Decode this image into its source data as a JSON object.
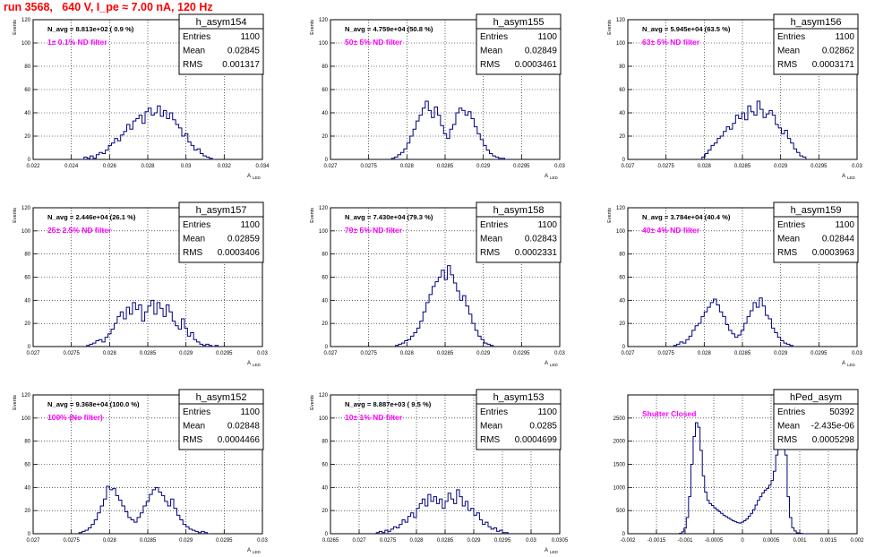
{
  "page_title": "run 3568,   640 V, I_pe ≈ 7.00 nA, 120 Hz",
  "colors": {
    "title": "#ff0000",
    "histogram": "#000080",
    "annotation": "#ff00ff",
    "grid": "#000000",
    "background": "#ffffff"
  },
  "chart_data": [
    {
      "type": "histogram",
      "name": "h_asym154",
      "stats": {
        "Entries": "1100",
        "Mean": "0.02845",
        "RMS": "0.001317"
      },
      "navg": "N_avg = 8.813e+02 ( 0.9 %)",
      "note": "1± 0.1% ND filter",
      "ylabel": "Events",
      "xlabel": "A",
      "xlabel_sub": "LED",
      "xlim": [
        0.022,
        0.034
      ],
      "ylim": [
        0,
        120
      ],
      "xticks": [
        "0.022",
        "0.024",
        "0.026",
        "0.028",
        "0.03",
        "0.032",
        "0.034"
      ],
      "yticks": [
        "0",
        "20",
        "40",
        "60",
        "80",
        "100",
        "120"
      ],
      "grid": true,
      "bin_edges": [
        0.0245,
        0.02466,
        0.02482,
        0.02498,
        0.02514,
        0.0253,
        0.02546,
        0.02562,
        0.02578,
        0.02594,
        0.0261,
        0.02626,
        0.02642,
        0.02658,
        0.02674,
        0.0269,
        0.02706,
        0.02722,
        0.02738,
        0.02754,
        0.0277,
        0.02786,
        0.02802,
        0.02818,
        0.02834,
        0.0285,
        0.02866,
        0.02882,
        0.02898,
        0.02914,
        0.0293,
        0.02946,
        0.02962,
        0.02978,
        0.02994,
        0.0301,
        0.03026,
        0.03042,
        0.03058,
        0.03074,
        0.0309,
        0.03106,
        0.03122,
        0.03138,
        0.03154
      ],
      "counts": [
        0,
        2,
        1,
        3,
        1,
        4,
        6,
        5,
        8,
        12,
        14,
        18,
        16,
        21,
        24,
        30,
        26,
        33,
        35,
        38,
        31,
        41,
        44,
        38,
        40,
        46,
        37,
        42,
        35,
        40,
        34,
        30,
        27,
        20,
        22,
        15,
        12,
        8,
        9,
        5,
        3,
        2,
        1,
        0
      ]
    },
    {
      "type": "histogram",
      "name": "h_asym155",
      "stats": {
        "Entries": "1100",
        "Mean": "0.02849",
        "RMS": "0.0003461"
      },
      "navg": "N_avg = 4.759e+04 (50.8 %)",
      "note": "50± 5% ND filter",
      "ylabel": "Events",
      "xlabel": "A",
      "xlabel_sub": "LED",
      "xlim": [
        0.027,
        0.03
      ],
      "ylim": [
        0,
        120
      ],
      "xticks": [
        "0.027",
        "0.0275",
        "0.028",
        "0.0285",
        "0.029",
        "0.0295",
        "0.03"
      ],
      "yticks": [
        "0",
        "20",
        "40",
        "60",
        "80",
        "100",
        "120"
      ],
      "grid": true,
      "bin_edges": [
        0.0278,
        0.02784,
        0.02788,
        0.02792,
        0.02796,
        0.028,
        0.02804,
        0.02808,
        0.02812,
        0.02816,
        0.0282,
        0.02824,
        0.02828,
        0.02832,
        0.02836,
        0.0284,
        0.02844,
        0.02848,
        0.02852,
        0.02856,
        0.0286,
        0.02864,
        0.02868,
        0.02872,
        0.02876,
        0.0288,
        0.02884,
        0.02888,
        0.02892,
        0.02896,
        0.029,
        0.02904,
        0.02908,
        0.02912,
        0.02916,
        0.0292,
        0.02924,
        0.02928,
        0.02932
      ],
      "counts": [
        1,
        2,
        4,
        6,
        9,
        14,
        20,
        26,
        33,
        38,
        44,
        50,
        42,
        36,
        45,
        38,
        29,
        22,
        18,
        26,
        30,
        40,
        44,
        42,
        38,
        41,
        35,
        28,
        22,
        17,
        12,
        8,
        5,
        3,
        2,
        1,
        1,
        0
      ]
    },
    {
      "type": "histogram",
      "name": "h_asym156",
      "stats": {
        "Entries": "1100",
        "Mean": "0.02862",
        "RMS": "0.0003171"
      },
      "navg": "N_avg = 5.945e+04 (63.5 %)",
      "note": "63± 5% ND filter",
      "ylabel": "Events",
      "xlabel": "A",
      "xlabel_sub": "LED",
      "xlim": [
        0.027,
        0.03
      ],
      "ylim": [
        0,
        120
      ],
      "xticks": [
        "0.027",
        "0.0275",
        "0.028",
        "0.0285",
        "0.029",
        "0.0295",
        "0.03"
      ],
      "yticks": [
        "0",
        "20",
        "40",
        "60",
        "80",
        "100",
        "120"
      ],
      "grid": true,
      "bin_edges": [
        0.02797,
        0.02801,
        0.02805,
        0.02809,
        0.02813,
        0.02817,
        0.02821,
        0.02825,
        0.02829,
        0.02833,
        0.02837,
        0.02841,
        0.02845,
        0.02849,
        0.02853,
        0.02857,
        0.02861,
        0.02865,
        0.02869,
        0.02873,
        0.02877,
        0.02881,
        0.02885,
        0.02889,
        0.02893,
        0.02897,
        0.02901,
        0.02905,
        0.02909,
        0.02913,
        0.02917,
        0.02921,
        0.02925,
        0.02929,
        0.02933
      ],
      "counts": [
        2,
        5,
        8,
        12,
        14,
        18,
        20,
        24,
        28,
        26,
        31,
        38,
        35,
        40,
        34,
        46,
        41,
        38,
        50,
        43,
        36,
        39,
        42,
        38,
        30,
        27,
        22,
        25,
        18,
        14,
        9,
        6,
        3,
        2
      ]
    },
    {
      "type": "histogram",
      "name": "h_asym157",
      "stats": {
        "Entries": "1100",
        "Mean": "0.02859",
        "RMS": "0.0003406"
      },
      "navg": "N_avg = 2.446e+04 (26.1 %)",
      "note": "25± 2.5% ND filter",
      "ylabel": "Events",
      "xlabel": "A",
      "xlabel_sub": "LED",
      "xlim": [
        0.027,
        0.03
      ],
      "ylim": [
        0,
        120
      ],
      "xticks": [
        "0.027",
        "0.0275",
        "0.028",
        "0.0285",
        "0.029",
        "0.0295",
        "0.03"
      ],
      "yticks": [
        "0",
        "20",
        "40",
        "60",
        "80",
        "100",
        "120"
      ],
      "grid": true,
      "bin_edges": [
        0.0277,
        0.02774,
        0.02778,
        0.02782,
        0.02786,
        0.0279,
        0.02794,
        0.02798,
        0.02802,
        0.02806,
        0.0281,
        0.02814,
        0.02818,
        0.02822,
        0.02826,
        0.0283,
        0.02834,
        0.02838,
        0.02842,
        0.02846,
        0.0285,
        0.02854,
        0.02858,
        0.02862,
        0.02866,
        0.0287,
        0.02874,
        0.02878,
        0.02882,
        0.02886,
        0.0289,
        0.02894,
        0.02898,
        0.02902,
        0.02906,
        0.0291,
        0.02914,
        0.02918,
        0.02922,
        0.02926,
        0.0293,
        0.02934,
        0.02938,
        0.02942
      ],
      "counts": [
        1,
        2,
        3,
        5,
        6,
        4,
        8,
        11,
        15,
        20,
        26,
        30,
        24,
        34,
        28,
        38,
        32,
        36,
        22,
        30,
        35,
        40,
        28,
        38,
        33,
        26,
        36,
        30,
        22,
        18,
        15,
        24,
        16,
        9,
        12,
        6,
        4,
        2,
        1,
        2,
        1,
        0,
        1
      ]
    },
    {
      "type": "histogram",
      "name": "h_asym158",
      "stats": {
        "Entries": "1100",
        "Mean": "0.02843",
        "RMS": "0.0002331"
      },
      "navg": "N_avg = 7.430e+04 (79.3 %)",
      "note": "79± 5% ND filter",
      "ylabel": "Events",
      "xlabel": "A",
      "xlabel_sub": "LED",
      "xlim": [
        0.027,
        0.03
      ],
      "ylim": [
        0,
        120
      ],
      "xticks": [
        "0.027",
        "0.0275",
        "0.028",
        "0.0285",
        "0.029",
        "0.0295",
        "0.03"
      ],
      "yticks": [
        "0",
        "20",
        "40",
        "60",
        "80",
        "100",
        "120"
      ],
      "grid": true,
      "bin_edges": [
        0.02785,
        0.02789,
        0.02793,
        0.02797,
        0.02801,
        0.02805,
        0.02809,
        0.02813,
        0.02817,
        0.02821,
        0.02825,
        0.02829,
        0.02833,
        0.02837,
        0.02841,
        0.02845,
        0.02849,
        0.02853,
        0.02857,
        0.02861,
        0.02865,
        0.02869,
        0.02873,
        0.02877,
        0.02881,
        0.02885,
        0.02889,
        0.02893,
        0.02897,
        0.02901,
        0.02905,
        0.02909,
        0.02913
      ],
      "counts": [
        1,
        2,
        3,
        5,
        6,
        9,
        12,
        16,
        22,
        30,
        38,
        45,
        52,
        56,
        60,
        66,
        58,
        70,
        62,
        55,
        48,
        40,
        44,
        35,
        28,
        20,
        14,
        9,
        6,
        3,
        2,
        1
      ]
    },
    {
      "type": "histogram",
      "name": "h_asym159",
      "stats": {
        "Entries": "1100",
        "Mean": "0.02844",
        "RMS": "0.0003963"
      },
      "navg": "N_avg = 3.784e+04 (40.4 %)",
      "note": "40± 4% ND filter",
      "ylabel": "Events",
      "xlabel": "A",
      "xlabel_sub": "LED",
      "xlim": [
        0.027,
        0.03
      ],
      "ylim": [
        0,
        120
      ],
      "xticks": [
        "0.027",
        "0.0275",
        "0.028",
        "0.0285",
        "0.029",
        "0.0295",
        "0.03"
      ],
      "yticks": [
        "0",
        "20",
        "40",
        "60",
        "80",
        "100",
        "120"
      ],
      "grid": true,
      "bin_edges": [
        0.0276,
        0.02764,
        0.02768,
        0.02772,
        0.02776,
        0.0278,
        0.02784,
        0.02788,
        0.02792,
        0.02796,
        0.028,
        0.02804,
        0.02808,
        0.02812,
        0.02816,
        0.0282,
        0.02824,
        0.02828,
        0.02832,
        0.02836,
        0.0284,
        0.02844,
        0.02848,
        0.02852,
        0.02856,
        0.0286,
        0.02864,
        0.02868,
        0.02872,
        0.02876,
        0.0288,
        0.02884,
        0.02888,
        0.02892,
        0.02896,
        0.029,
        0.02904,
        0.02908,
        0.02912,
        0.02916,
        0.0292
      ],
      "counts": [
        1,
        2,
        4,
        3,
        6,
        9,
        14,
        18,
        20,
        26,
        30,
        34,
        38,
        41,
        36,
        30,
        26,
        19,
        14,
        11,
        8,
        10,
        14,
        20,
        26,
        31,
        38,
        34,
        42,
        35,
        27,
        24,
        16,
        12,
        8,
        5,
        3,
        2,
        1,
        0
      ]
    },
    {
      "type": "histogram",
      "name": "h_asym152",
      "stats": {
        "Entries": "1100",
        "Mean": "0.02848",
        "RMS": "0.0004466"
      },
      "navg": "N_avg = 9.368e+04 (100.0 %)",
      "note": "100% (No filter)",
      "ylabel": "Events",
      "xlabel": "A",
      "xlabel_sub": "LED",
      "xlim": [
        0.027,
        0.03
      ],
      "ylim": [
        0,
        120
      ],
      "xticks": [
        "0.027",
        "0.0275",
        "0.028",
        "0.0285",
        "0.029",
        "0.0295",
        "0.03"
      ],
      "yticks": [
        "0",
        "20",
        "40",
        "60",
        "80",
        "100",
        "120"
      ],
      "grid": true,
      "bin_edges": [
        0.0276,
        0.02764,
        0.02768,
        0.02772,
        0.02776,
        0.0278,
        0.02784,
        0.02788,
        0.02792,
        0.02796,
        0.028,
        0.02804,
        0.02808,
        0.02812,
        0.02816,
        0.0282,
        0.02824,
        0.02828,
        0.02832,
        0.02836,
        0.0284,
        0.02844,
        0.02848,
        0.02852,
        0.02856,
        0.0286,
        0.02864,
        0.02868,
        0.02872,
        0.02876,
        0.0288,
        0.02884,
        0.02888,
        0.02892,
        0.02896,
        0.029,
        0.02904,
        0.02908,
        0.02912,
        0.02916,
        0.0292,
        0.02924,
        0.02928,
        0.02932
      ],
      "counts": [
        1,
        2,
        3,
        5,
        8,
        12,
        18,
        24,
        30,
        41,
        38,
        39,
        33,
        29,
        24,
        19,
        14,
        12,
        10,
        14,
        18,
        24,
        28,
        34,
        38,
        40,
        36,
        33,
        28,
        24,
        30,
        22,
        16,
        12,
        8,
        6,
        4,
        3,
        2,
        1,
        2,
        1,
        0
      ]
    },
    {
      "type": "histogram",
      "name": "h_asym153",
      "stats": {
        "Entries": "1100",
        "Mean": "0.0285",
        "RMS": "0.0004699"
      },
      "navg": "N_avg = 8.887e+03 ( 9.5 %)",
      "note": "10± 1% ND filter",
      "ylabel": "Events",
      "xlabel": "A",
      "xlabel_sub": "LED",
      "xlim": [
        0.0265,
        0.0305
      ],
      "ylim": [
        0,
        120
      ],
      "xticks": [
        "0.0265",
        "0.027",
        "0.0275",
        "0.028",
        "0.0285",
        "0.029",
        "0.0295",
        "0.03",
        "0.0305"
      ],
      "yticks": [
        "0",
        "20",
        "40",
        "60",
        "80",
        "100",
        "120"
      ],
      "grid": true,
      "bin_edges": [
        0.0273,
        0.02735,
        0.0274,
        0.02745,
        0.0275,
        0.02755,
        0.0276,
        0.02765,
        0.0277,
        0.02775,
        0.0278,
        0.02785,
        0.0279,
        0.02795,
        0.028,
        0.02805,
        0.0281,
        0.02815,
        0.0282,
        0.02825,
        0.0283,
        0.02835,
        0.0284,
        0.02845,
        0.0285,
        0.02855,
        0.0286,
        0.02865,
        0.0287,
        0.02875,
        0.0288,
        0.02885,
        0.0289,
        0.02895,
        0.029,
        0.02905,
        0.0291,
        0.02915,
        0.0292,
        0.02925,
        0.0293,
        0.02935,
        0.0294,
        0.02945,
        0.0295,
        0.02955,
        0.0296
      ],
      "counts": [
        1,
        2,
        1,
        3,
        2,
        4,
        6,
        5,
        8,
        12,
        10,
        15,
        18,
        14,
        22,
        26,
        30,
        24,
        34,
        28,
        32,
        26,
        30,
        22,
        28,
        35,
        30,
        26,
        38,
        32,
        24,
        28,
        20,
        22,
        16,
        18,
        12,
        8,
        10,
        6,
        4,
        5,
        2,
        3,
        1,
        1
      ]
    },
    {
      "type": "histogram",
      "name": "hPed_asym",
      "stats": {
        "Entries": "50392",
        "Mean": "-2.435e-06",
        "RMS": "0.0005298"
      },
      "navg": "",
      "note": "Shutter Closed",
      "ylabel": "",
      "xlabel": "",
      "xlabel_sub": "",
      "xlim": [
        -0.002,
        0.002
      ],
      "ylim": [
        0,
        3000
      ],
      "xticks": [
        "-0.002",
        "-0.0015",
        "-0.001",
        "-0.0005",
        "0",
        "0.0005",
        "0.001",
        "0.0015",
        "0.002"
      ],
      "yticks": [
        "0",
        "500",
        "1000",
        "1500",
        "2000",
        "2500"
      ],
      "grid": true,
      "bin_edges": [
        -0.0011,
        -0.00106,
        -0.00102,
        -0.00098,
        -0.00094,
        -0.0009,
        -0.00086,
        -0.00082,
        -0.00078,
        -0.00074,
        -0.0007,
        -0.00066,
        -0.00062,
        -0.00058,
        -0.00054,
        -0.0005,
        -0.00046,
        -0.00042,
        -0.00038,
        -0.00034,
        -0.0003,
        -0.00026,
        -0.00022,
        -0.00018,
        -0.00014,
        -0.0001,
        -6e-05,
        -2e-05,
        2e-05,
        6e-05,
        0.0001,
        0.00014,
        0.00018,
        0.00022,
        0.00026,
        0.0003,
        0.00034,
        0.00038,
        0.00042,
        0.00046,
        0.0005,
        0.00054,
        0.00058,
        0.00062,
        0.00066,
        0.0007,
        0.00074,
        0.00078,
        0.00082,
        0.00086,
        0.0009,
        0.00094,
        0.00098,
        0.00102,
        0.00106,
        0.0011
      ],
      "counts": [
        10,
        40,
        120,
        350,
        800,
        1500,
        2100,
        2400,
        2300,
        1800,
        1250,
        900,
        720,
        650,
        610,
        560,
        520,
        480,
        440,
        400,
        370,
        340,
        310,
        280,
        260,
        240,
        230,
        250,
        280,
        320,
        380,
        440,
        520,
        620,
        720,
        800,
        880,
        940,
        980,
        1050,
        1150,
        1350,
        1700,
        2400,
        2900,
        2600,
        1700,
        800,
        350,
        130,
        60,
        20,
        10,
        5,
        0
      ]
    }
  ]
}
